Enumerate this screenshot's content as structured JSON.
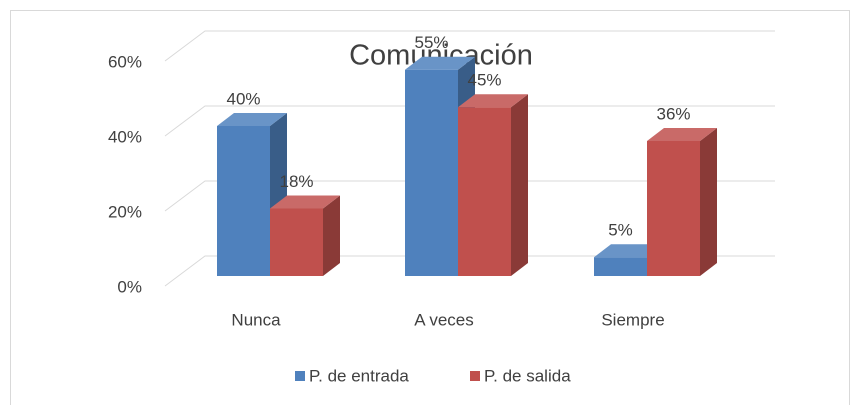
{
  "chart_data": {
    "type": "bar3d",
    "title": "Comunicación",
    "categories": [
      "Nunca",
      "A veces",
      "Siempre"
    ],
    "series": [
      {
        "name": "P. de entrada",
        "color": "#4f81bd",
        "values": [
          40,
          55,
          5
        ],
        "value_labels": [
          "40%",
          "55%",
          "5%"
        ]
      },
      {
        "name": "P. de salida",
        "color": "#c0504d",
        "values": [
          18,
          45,
          36
        ],
        "value_labels": [
          "18%",
          "45%",
          "36%"
        ]
      }
    ],
    "ylim": [
      0,
      60
    ],
    "yticks": [
      {
        "value": 0,
        "label": "0%"
      },
      {
        "value": 20,
        "label": "20%"
      },
      {
        "value": 40,
        "label": "40%"
      },
      {
        "value": 60,
        "label": "60%"
      }
    ],
    "grid": true,
    "legend": "bottom"
  }
}
